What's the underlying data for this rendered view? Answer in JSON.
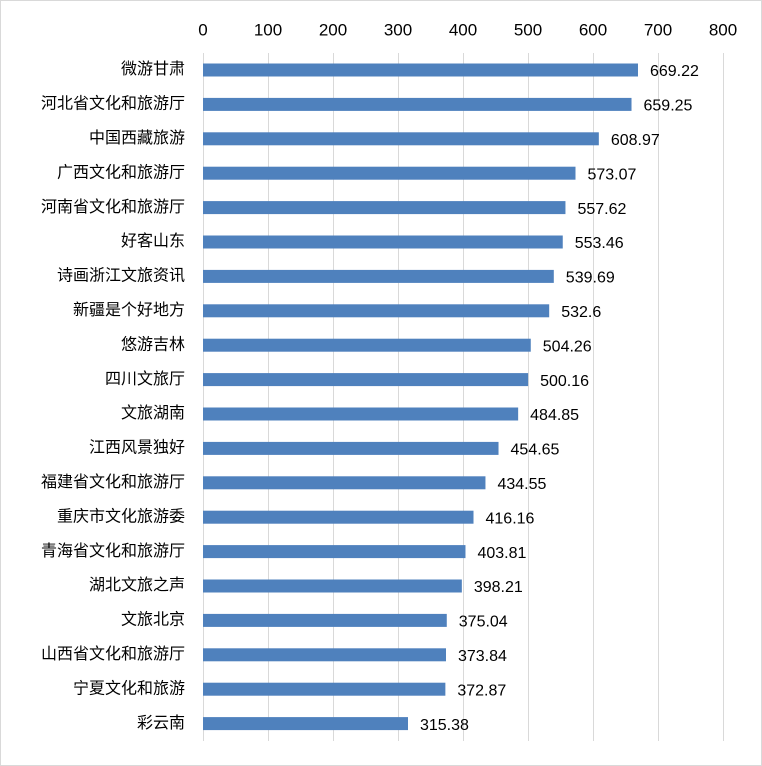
{
  "chart_data": {
    "type": "bar",
    "orientation": "horizontal",
    "title": "",
    "xlabel": "",
    "ylabel": "",
    "xlim": [
      0,
      800
    ],
    "x_ticks": [
      0,
      100,
      200,
      300,
      400,
      500,
      600,
      700,
      800
    ],
    "x_axis_position": "top",
    "grid": true,
    "legend": "none",
    "bar_color": "#4f81bd",
    "categories": [
      "微游甘肃",
      "河北省文化和旅游厅",
      "中国西藏旅游",
      "广西文化和旅游厅",
      "河南省文化和旅游厅",
      "好客山东",
      "诗画浙江文旅资讯",
      "新疆是个好地方",
      "悠游吉林",
      "四川文旅厅",
      "文旅湖南",
      "江西风景独好",
      "福建省文化和旅游厅",
      "重庆市文化旅游委",
      "青海省文化和旅游厅",
      "湖北文旅之声",
      "文旅北京",
      "山西省文化和旅游厅",
      "宁夏文化和旅游",
      "彩云南"
    ],
    "values": [
      669.22,
      659.25,
      608.97,
      573.07,
      557.62,
      553.46,
      539.69,
      532.6,
      504.26,
      500.16,
      484.85,
      454.65,
      434.55,
      416.16,
      403.81,
      398.21,
      375.04,
      373.84,
      372.87,
      315.38
    ],
    "value_labels": [
      "669.22",
      "659.25",
      "608.97",
      "573.07",
      "557.62",
      "553.46",
      "539.69",
      "532.6",
      "504.26",
      "500.16",
      "484.85",
      "454.65",
      "434.55",
      "416.16",
      "403.81",
      "398.21",
      "375.04",
      "373.84",
      "372.87",
      "315.38"
    ]
  }
}
